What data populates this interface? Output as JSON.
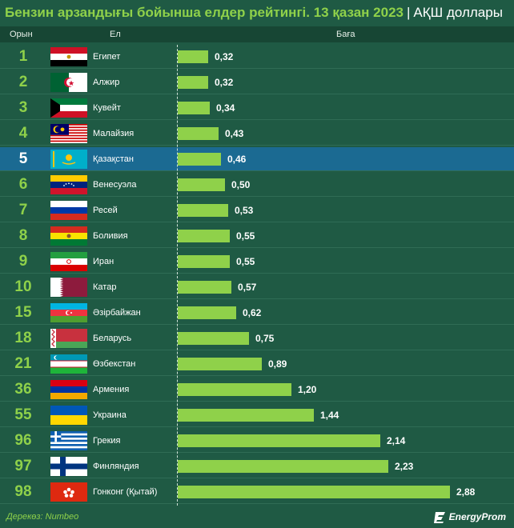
{
  "title": {
    "main": "Бензин арзандығы бойынша елдер рейтингі. 13 қазан 2023",
    "separator": "|",
    "unit": "АҚШ доллары"
  },
  "header": {
    "rank": "Орын",
    "country": "Ел",
    "price": "Баға"
  },
  "source": "Дерекөз: Numbeo",
  "logo": "EnergyProm",
  "colors": {
    "background": "#1f5a44",
    "header": "#174634",
    "bar": "#8fd14a",
    "highlight": "#1b6a92",
    "rank": "#8fd14a"
  },
  "chart_data": {
    "type": "bar",
    "orientation": "horizontal",
    "title": "Бензин арзандығы бойынша елдер рейтингі. 13 қазан 2023",
    "unit": "АҚШ доллары",
    "highlight": "Қазақстан",
    "rows": [
      {
        "rank": "1",
        "country": "Египет",
        "flag": "egypt-flag",
        "value": 0.32,
        "label": "0,32"
      },
      {
        "rank": "2",
        "country": "Алжир",
        "flag": "algeria-flag",
        "value": 0.32,
        "label": "0,32"
      },
      {
        "rank": "3",
        "country": "Кувейт",
        "flag": "kuwait-flag",
        "value": 0.34,
        "label": "0,34"
      },
      {
        "rank": "4",
        "country": "Малайзия",
        "flag": "malaysia-flag",
        "value": 0.43,
        "label": "0,43"
      },
      {
        "rank": "5",
        "country": "Қазақстан",
        "flag": "kazakhstan-flag",
        "value": 0.46,
        "label": "0,46"
      },
      {
        "rank": "6",
        "country": "Венесуэла",
        "flag": "venezuela-flag",
        "value": 0.5,
        "label": "0,50"
      },
      {
        "rank": "7",
        "country": "Ресей",
        "flag": "russia-flag",
        "value": 0.53,
        "label": "0,53"
      },
      {
        "rank": "8",
        "country": "Боливия",
        "flag": "bolivia-flag",
        "value": 0.55,
        "label": "0,55"
      },
      {
        "rank": "9",
        "country": "Иран",
        "flag": "iran-flag",
        "value": 0.55,
        "label": "0,55"
      },
      {
        "rank": "10",
        "country": "Катар",
        "flag": "qatar-flag",
        "value": 0.57,
        "label": "0,57"
      },
      {
        "rank": "15",
        "country": "Әзірбайжан",
        "flag": "azerbaijan-flag",
        "value": 0.62,
        "label": "0,62"
      },
      {
        "rank": "18",
        "country": "Беларусь",
        "flag": "belarus-flag",
        "value": 0.75,
        "label": "0,75"
      },
      {
        "rank": "21",
        "country": "Өзбекстан",
        "flag": "uzbekistan-flag",
        "value": 0.89,
        "label": "0,89"
      },
      {
        "rank": "36",
        "country": "Армения",
        "flag": "armenia-flag",
        "value": 1.2,
        "label": "1,20"
      },
      {
        "rank": "55",
        "country": "Украина",
        "flag": "ukraine-flag",
        "value": 1.44,
        "label": "1,44"
      },
      {
        "rank": "96",
        "country": "Грекия",
        "flag": "greece-flag",
        "value": 2.14,
        "label": "2,14"
      },
      {
        "rank": "97",
        "country": "Финляндия",
        "flag": "finland-flag",
        "value": 2.23,
        "label": "2,23"
      },
      {
        "rank": "98",
        "country": "Гонконг (Қытай)",
        "flag": "hongkong-flag",
        "value": 2.88,
        "label": "2,88"
      }
    ]
  }
}
